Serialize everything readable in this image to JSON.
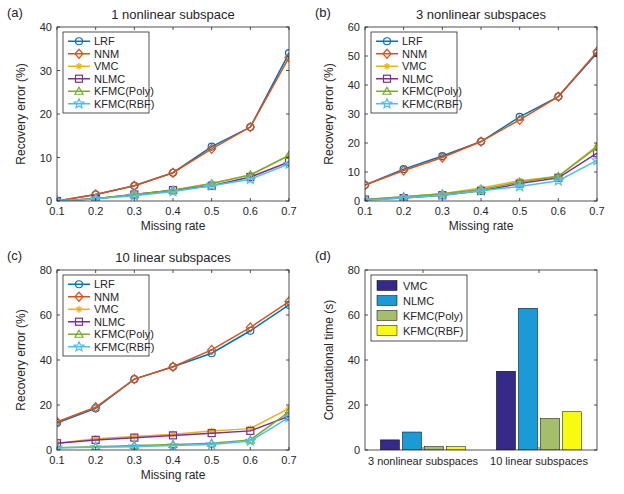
{
  "chart_data": [
    {
      "type": "line",
      "annotation": "(a)",
      "title": "1 nonlinear subspace",
      "x_label": "Missing rate",
      "y_label": "Recovery error (%)",
      "x": [
        0.1,
        0.2,
        0.3,
        0.4,
        0.5,
        0.6,
        0.7
      ],
      "xlim": [
        0.1,
        0.7
      ],
      "xticks": [
        0.1,
        0.2,
        0.3,
        0.4,
        0.5,
        0.6,
        0.7
      ],
      "ylim": [
        0,
        40
      ],
      "yticks": [
        0,
        10,
        20,
        30,
        40
      ],
      "legend": "upper-left",
      "grid": false,
      "series": [
        {
          "name": "LRF",
          "color": "#0072bd",
          "marker": "circle",
          "values": [
            0,
            1.5,
            3.5,
            6.5,
            12.5,
            17,
            34
          ]
        },
        {
          "name": "NNM",
          "color": "#d95319",
          "marker": "diamond",
          "values": [
            0,
            1.5,
            3.5,
            6.5,
            12,
            17,
            33
          ]
        },
        {
          "name": "VMC",
          "color": "#edb120",
          "marker": "asterisk",
          "values": [
            0,
            0.5,
            1.5,
            2.5,
            4,
            6,
            10.5
          ]
        },
        {
          "name": "NLMC",
          "color": "#7e2f8e",
          "marker": "square",
          "values": [
            0,
            0.5,
            1.5,
            2.5,
            3.5,
            5.5,
            9
          ]
        },
        {
          "name": "KFMC(Poly)",
          "color": "#77ac30",
          "marker": "triangle",
          "values": [
            0,
            0.5,
            1.5,
            2.5,
            4,
            6,
            10.5
          ]
        },
        {
          "name": "KFMC(RBF)",
          "color": "#4dbeee",
          "marker": "hexagram",
          "values": [
            0,
            0.5,
            1.2,
            2.2,
            3.5,
            5,
            8.5
          ]
        }
      ]
    },
    {
      "type": "line",
      "annotation": "(b)",
      "title": "3 nonlinear subspaces",
      "x_label": "Missing rate",
      "y_label": "Recovery error (%)",
      "x": [
        0.1,
        0.2,
        0.3,
        0.4,
        0.5,
        0.6,
        0.7
      ],
      "xlim": [
        0.1,
        0.7
      ],
      "xticks": [
        0.1,
        0.2,
        0.3,
        0.4,
        0.5,
        0.6,
        0.7
      ],
      "ylim": [
        0,
        60
      ],
      "yticks": [
        0,
        10,
        20,
        30,
        40,
        50,
        60
      ],
      "legend": "upper-left",
      "grid": false,
      "series": [
        {
          "name": "LRF",
          "color": "#0072bd",
          "marker": "circle",
          "values": [
            5.5,
            11,
            15.5,
            20.5,
            29,
            36,
            51
          ]
        },
        {
          "name": "NNM",
          "color": "#d95319",
          "marker": "diamond",
          "values": [
            5.5,
            10.5,
            15,
            20.5,
            28,
            36,
            51.5
          ]
        },
        {
          "name": "VMC",
          "color": "#edb120",
          "marker": "asterisk",
          "values": [
            0.5,
            1.5,
            2.5,
            4.5,
            7,
            8.5,
            19
          ]
        },
        {
          "name": "NLMC",
          "color": "#7e2f8e",
          "marker": "square",
          "values": [
            0.5,
            1,
            2,
            3.5,
            6,
            8,
            16.5
          ]
        },
        {
          "name": "KFMC(Poly)",
          "color": "#77ac30",
          "marker": "triangle",
          "values": [
            0.5,
            1.5,
            2.5,
            4,
            6.5,
            8.5,
            18.5
          ]
        },
        {
          "name": "KFMC(RBF)",
          "color": "#4dbeee",
          "marker": "hexagram",
          "values": [
            0.3,
            1,
            2,
            3.5,
            5,
            7,
            14
          ]
        }
      ]
    },
    {
      "type": "line",
      "annotation": "(c)",
      "title": "10 linear subspaces",
      "x_label": "Missing rate",
      "y_label": "Recovery error (%)",
      "x": [
        0.1,
        0.2,
        0.3,
        0.4,
        0.5,
        0.6,
        0.7
      ],
      "xlim": [
        0.1,
        0.7
      ],
      "xticks": [
        0.1,
        0.2,
        0.3,
        0.4,
        0.5,
        0.6,
        0.7
      ],
      "ylim": [
        0,
        80
      ],
      "yticks": [
        0,
        20,
        40,
        60,
        80
      ],
      "legend": "upper-left",
      "grid": false,
      "series": [
        {
          "name": "LRF",
          "color": "#0072bd",
          "marker": "circle",
          "values": [
            12,
            18.5,
            31.5,
            37,
            43,
            53,
            64.5
          ]
        },
        {
          "name": "NNM",
          "color": "#d95319",
          "marker": "diamond",
          "values": [
            12.5,
            19,
            31.5,
            37,
            44.5,
            54.5,
            66
          ]
        },
        {
          "name": "VMC",
          "color": "#edb120",
          "marker": "asterisk",
          "values": [
            3,
            5,
            6,
            7,
            8.5,
            9.5,
            18.5
          ]
        },
        {
          "name": "NLMC",
          "color": "#7e2f8e",
          "marker": "square",
          "values": [
            3,
            4.5,
            5.5,
            6.5,
            7.5,
            8.5,
            15
          ]
        },
        {
          "name": "KFMC(Poly)",
          "color": "#77ac30",
          "marker": "triangle",
          "values": [
            1,
            1.5,
            2,
            2.5,
            3,
            4.5,
            17
          ]
        },
        {
          "name": "KFMC(RBF)",
          "color": "#4dbeee",
          "marker": "hexagram",
          "values": [
            1,
            1.2,
            1.5,
            2,
            2.5,
            4,
            14.5
          ]
        }
      ]
    },
    {
      "type": "bar",
      "annotation": "(d)",
      "y_label": "Computational time (s)",
      "categories": [
        "3 nonlinear subspaces",
        "10 linear subspaces"
      ],
      "ylim": [
        0,
        80
      ],
      "yticks": [
        0,
        20,
        40,
        60,
        80
      ],
      "legend": "upper-left",
      "grid": false,
      "series": [
        {
          "name": "VMC",
          "color": "#352a87",
          "values": [
            4.5,
            35
          ]
        },
        {
          "name": "NLMC",
          "color": "#1a9bd7",
          "values": [
            8,
            63
          ]
        },
        {
          "name": "KFMC(Poly)",
          "color": "#a5be6a",
          "values": [
            1.5,
            14
          ]
        },
        {
          "name": "KFMC(RBF)",
          "color": "#f9fb0e",
          "values": [
            1.5,
            17
          ]
        }
      ]
    }
  ]
}
